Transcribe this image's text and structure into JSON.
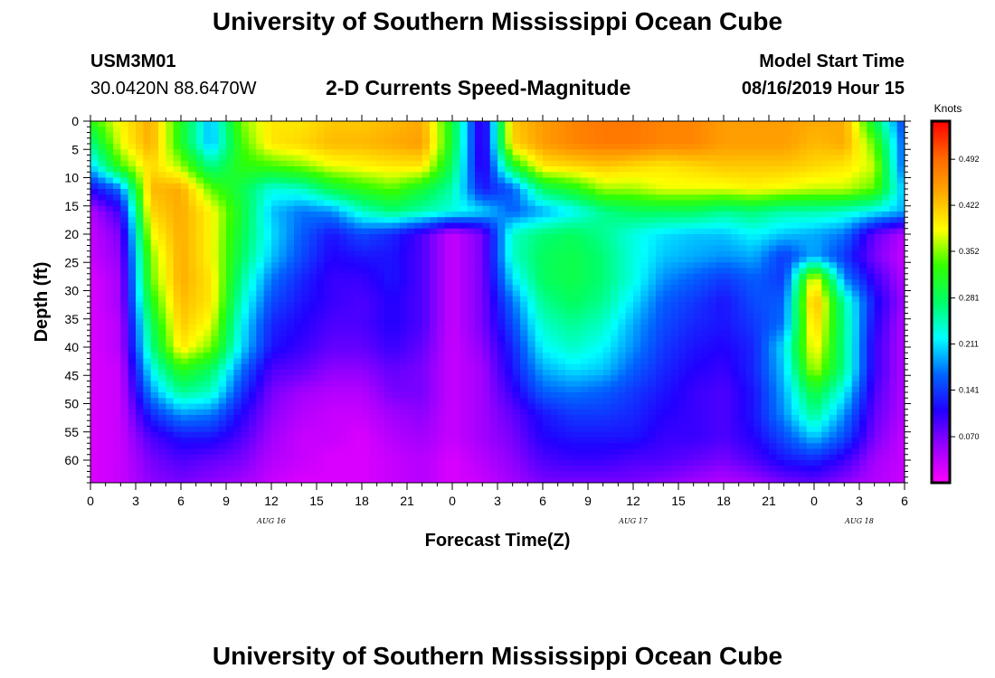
{
  "header": {
    "title": "University of Southern Mississippi Ocean Cube",
    "station_id": "USM3M01",
    "station_coords": "30.0420N 88.6470W",
    "plot_title": "2-D Currents Speed-Magnitude",
    "model_label": "Model Start Time",
    "model_time": "08/16/2019 Hour 15"
  },
  "footer": {
    "title": "University of Southern Mississippi Ocean Cube"
  },
  "chart_data": {
    "type": "heatmap",
    "title": "2-D Currents Speed-Magnitude",
    "xlabel": "Forecast Time(Z)",
    "ylabel": "Depth (ft)",
    "x_ticks": [
      "0",
      "3",
      "6",
      "9",
      "12",
      "15",
      "18",
      "21",
      "0",
      "3",
      "6",
      "9",
      "12",
      "15",
      "18",
      "21",
      "0",
      "3",
      "6"
    ],
    "x_hours": [
      0,
      3,
      6,
      9,
      12,
      15,
      18,
      21,
      24,
      27,
      30,
      33,
      36,
      39,
      42,
      45,
      48,
      51,
      54
    ],
    "xlim": [
      0,
      54
    ],
    "date_labels": [
      {
        "hour": 12,
        "label": "AUG 16"
      },
      {
        "hour": 36,
        "label": "AUG 17"
      },
      {
        "hour": 51,
        "label": "AUG 18"
      }
    ],
    "y_ticks": [
      0,
      5,
      10,
      15,
      20,
      25,
      30,
      35,
      40,
      45,
      50,
      55,
      60
    ],
    "ylim": [
      0,
      64
    ],
    "colorbar": {
      "unit": "Knots",
      "ticks": [
        "0.492",
        "0.422",
        "0.352",
        "0.281",
        "0.211",
        "0.141",
        "0.070"
      ],
      "tick_values": [
        0.492,
        0.422,
        0.352,
        0.281,
        0.211,
        0.141,
        0.07
      ],
      "range": [
        0.0,
        0.55
      ],
      "colors": [
        "#ff00ff",
        "#9900ff",
        "#2200ff",
        "#0066ff",
        "#00ffff",
        "#00ff66",
        "#33ff00",
        "#ffff00",
        "#ffaa00",
        "#ff6600",
        "#ff0000"
      ]
    },
    "grid_x_hours": [
      0,
      2,
      4,
      6,
      8,
      10,
      12,
      14,
      16,
      18,
      20,
      22,
      24,
      26,
      28,
      30,
      32,
      34,
      36,
      38,
      40,
      42,
      44,
      46,
      48,
      50,
      52,
      54
    ],
    "grid_depths": [
      0,
      4,
      8,
      12,
      16,
      20,
      24,
      28,
      32,
      36,
      40,
      44,
      48,
      52,
      56,
      60,
      64
    ],
    "speed_grid": [
      [
        0.32,
        0.39,
        0.44,
        0.31,
        0.19,
        0.35,
        0.4,
        0.4,
        0.42,
        0.42,
        0.43,
        0.44,
        0.3,
        0.08,
        0.42,
        0.45,
        0.47,
        0.48,
        0.48,
        0.47,
        0.47,
        0.45,
        0.45,
        0.45,
        0.44,
        0.44,
        0.29,
        0.14
      ],
      [
        0.26,
        0.38,
        0.44,
        0.31,
        0.19,
        0.33,
        0.4,
        0.41,
        0.43,
        0.43,
        0.44,
        0.45,
        0.3,
        0.08,
        0.41,
        0.45,
        0.47,
        0.48,
        0.48,
        0.47,
        0.47,
        0.45,
        0.45,
        0.45,
        0.43,
        0.44,
        0.34,
        0.15
      ],
      [
        0.2,
        0.33,
        0.41,
        0.36,
        0.26,
        0.32,
        0.33,
        0.35,
        0.38,
        0.39,
        0.4,
        0.4,
        0.28,
        0.09,
        0.3,
        0.4,
        0.41,
        0.42,
        0.41,
        0.4,
        0.41,
        0.42,
        0.42,
        0.42,
        0.41,
        0.4,
        0.37,
        0.15
      ],
      [
        0.11,
        0.17,
        0.43,
        0.44,
        0.34,
        0.29,
        0.23,
        0.24,
        0.29,
        0.32,
        0.34,
        0.3,
        0.25,
        0.12,
        0.16,
        0.28,
        0.31,
        0.36,
        0.36,
        0.38,
        0.38,
        0.38,
        0.39,
        0.38,
        0.37,
        0.37,
        0.34,
        0.19
      ],
      [
        0.04,
        0.1,
        0.41,
        0.44,
        0.39,
        0.3,
        0.2,
        0.17,
        0.18,
        0.24,
        0.27,
        0.25,
        0.23,
        0.21,
        0.16,
        0.19,
        0.22,
        0.26,
        0.28,
        0.28,
        0.28,
        0.26,
        0.27,
        0.25,
        0.25,
        0.24,
        0.22,
        0.19
      ],
      [
        0.03,
        0.07,
        0.38,
        0.44,
        0.39,
        0.29,
        0.21,
        0.16,
        0.12,
        0.15,
        0.13,
        0.09,
        0.03,
        0.07,
        0.24,
        0.27,
        0.28,
        0.26,
        0.23,
        0.21,
        0.2,
        0.2,
        0.22,
        0.2,
        0.19,
        0.17,
        0.08,
        0.04
      ],
      [
        0.03,
        0.06,
        0.35,
        0.44,
        0.39,
        0.28,
        0.2,
        0.15,
        0.11,
        0.12,
        0.12,
        0.09,
        0.03,
        0.07,
        0.24,
        0.28,
        0.29,
        0.27,
        0.23,
        0.2,
        0.19,
        0.18,
        0.19,
        0.14,
        0.19,
        0.14,
        0.07,
        0.03
      ],
      [
        0.02,
        0.05,
        0.34,
        0.44,
        0.4,
        0.26,
        0.17,
        0.13,
        0.1,
        0.1,
        0.12,
        0.09,
        0.03,
        0.07,
        0.21,
        0.28,
        0.29,
        0.27,
        0.23,
        0.18,
        0.16,
        0.14,
        0.16,
        0.14,
        0.4,
        0.18,
        0.1,
        0.04
      ],
      [
        0.02,
        0.05,
        0.31,
        0.43,
        0.4,
        0.24,
        0.15,
        0.12,
        0.1,
        0.09,
        0.11,
        0.09,
        0.03,
        0.07,
        0.17,
        0.26,
        0.28,
        0.26,
        0.21,
        0.16,
        0.14,
        0.12,
        0.15,
        0.16,
        0.44,
        0.25,
        0.12,
        0.05
      ],
      [
        0.02,
        0.04,
        0.28,
        0.42,
        0.38,
        0.22,
        0.13,
        0.11,
        0.09,
        0.09,
        0.11,
        0.09,
        0.03,
        0.07,
        0.15,
        0.24,
        0.26,
        0.24,
        0.19,
        0.15,
        0.13,
        0.12,
        0.14,
        0.17,
        0.42,
        0.26,
        0.11,
        0.04
      ],
      [
        0.02,
        0.04,
        0.26,
        0.4,
        0.35,
        0.21,
        0.12,
        0.1,
        0.08,
        0.08,
        0.1,
        0.08,
        0.03,
        0.06,
        0.13,
        0.22,
        0.24,
        0.22,
        0.18,
        0.14,
        0.12,
        0.11,
        0.13,
        0.21,
        0.4,
        0.26,
        0.1,
        0.04
      ],
      [
        0.02,
        0.03,
        0.22,
        0.32,
        0.28,
        0.17,
        0.09,
        0.08,
        0.06,
        0.06,
        0.08,
        0.07,
        0.03,
        0.05,
        0.12,
        0.19,
        0.21,
        0.2,
        0.16,
        0.13,
        0.11,
        0.1,
        0.13,
        0.2,
        0.37,
        0.26,
        0.1,
        0.04
      ],
      [
        0.02,
        0.03,
        0.18,
        0.26,
        0.24,
        0.14,
        0.07,
        0.05,
        0.04,
        0.04,
        0.07,
        0.07,
        0.03,
        0.05,
        0.1,
        0.16,
        0.17,
        0.16,
        0.14,
        0.12,
        0.1,
        0.09,
        0.12,
        0.19,
        0.3,
        0.22,
        0.09,
        0.04
      ],
      [
        0.02,
        0.03,
        0.13,
        0.18,
        0.17,
        0.11,
        0.06,
        0.04,
        0.03,
        0.03,
        0.05,
        0.06,
        0.03,
        0.05,
        0.08,
        0.12,
        0.14,
        0.14,
        0.13,
        0.11,
        0.1,
        0.09,
        0.12,
        0.18,
        0.26,
        0.18,
        0.08,
        0.04
      ],
      [
        0.02,
        0.03,
        0.09,
        0.12,
        0.12,
        0.09,
        0.05,
        0.03,
        0.03,
        0.02,
        0.04,
        0.05,
        0.03,
        0.05,
        0.07,
        0.11,
        0.12,
        0.12,
        0.12,
        0.1,
        0.1,
        0.09,
        0.11,
        0.15,
        0.2,
        0.15,
        0.07,
        0.03
      ],
      [
        0.02,
        0.03,
        0.07,
        0.09,
        0.08,
        0.07,
        0.04,
        0.03,
        0.02,
        0.02,
        0.03,
        0.04,
        0.02,
        0.04,
        0.06,
        0.09,
        0.1,
        0.1,
        0.09,
        0.09,
        0.08,
        0.07,
        0.09,
        0.12,
        0.13,
        0.1,
        0.05,
        0.03
      ],
      [
        0.02,
        0.03,
        0.06,
        0.07,
        0.06,
        0.05,
        0.03,
        0.02,
        0.02,
        0.02,
        0.03,
        0.04,
        0.02,
        0.03,
        0.05,
        0.07,
        0.07,
        0.07,
        0.07,
        0.06,
        0.05,
        0.04,
        0.05,
        0.07,
        0.08,
        0.06,
        0.04,
        0.03
      ]
    ]
  }
}
